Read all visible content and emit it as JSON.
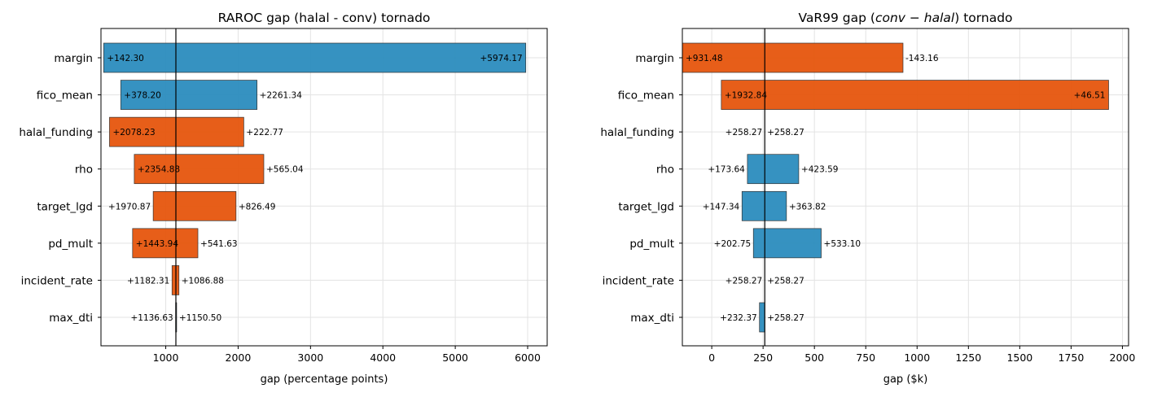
{
  "chart_data": [
    {
      "type": "bar",
      "orientation": "horizontal",
      "title": "RAROC gap (halal - conv) tornado",
      "xlabel": "gap (percentage points)",
      "xlim": [
        105,
        6270
      ],
      "xticks": [
        1000,
        2000,
        3000,
        4000,
        5000,
        6000
      ],
      "baseline": 1140,
      "grid": true,
      "categories": [
        "margin",
        "fico_mean",
        "halal_funding",
        "rho",
        "target_lgd",
        "pd_mult",
        "incident_rate",
        "max_dti"
      ],
      "low_values": [
        142.3,
        378.2,
        2078.23,
        2354.88,
        1970.87,
        1443.94,
        1182.31,
        1136.63
      ],
      "high_values": [
        5974.17,
        2261.34,
        222.77,
        565.04,
        826.49,
        541.63,
        1086.88,
        1150.5
      ],
      "low_labels": [
        "+142.30",
        "+378.20",
        "+2078.23",
        "+2354.88",
        "+1970.87",
        "+1443.94",
        "+1182.31",
        "+1136.63"
      ],
      "high_labels": [
        "+5974.17",
        "+2261.34",
        "+222.77",
        "+565.04",
        "+826.49",
        "+541.63",
        "+1086.88",
        "+1150.50"
      ]
    },
    {
      "type": "bar",
      "orientation": "horizontal",
      "title_parts": [
        "VaR99 gap (",
        "conv − halal",
        ") tornado"
      ],
      "xlabel": "gap ($k)",
      "xlim": [
        -143.16,
        2030
      ],
      "xticks": [
        0,
        250,
        500,
        750,
        1000,
        1250,
        1500,
        1750,
        2000
      ],
      "baseline": 258.27,
      "grid": true,
      "categories": [
        "margin",
        "fico_mean",
        "halal_funding",
        "rho",
        "target_lgd",
        "pd_mult",
        "incident_rate",
        "max_dti"
      ],
      "low_values": [
        931.48,
        1932.84,
        258.27,
        173.64,
        147.34,
        202.75,
        258.27,
        232.37
      ],
      "high_values": [
        -143.16,
        46.51,
        258.27,
        423.59,
        363.82,
        533.1,
        258.27,
        258.27
      ],
      "low_labels": [
        "+931.48",
        "+1932.84",
        "+258.27",
        "+173.64",
        "+147.34",
        "+202.75",
        "+258.27",
        "+232.37"
      ],
      "high_labels": [
        "-143.16",
        "+46.51",
        "+258.27",
        "+423.59",
        "+363.82",
        "+533.10",
        "+258.27",
        "+258.27"
      ]
    }
  ],
  "colors": {
    "increase": "#2b8cbe",
    "decrease": "#e6550d"
  }
}
